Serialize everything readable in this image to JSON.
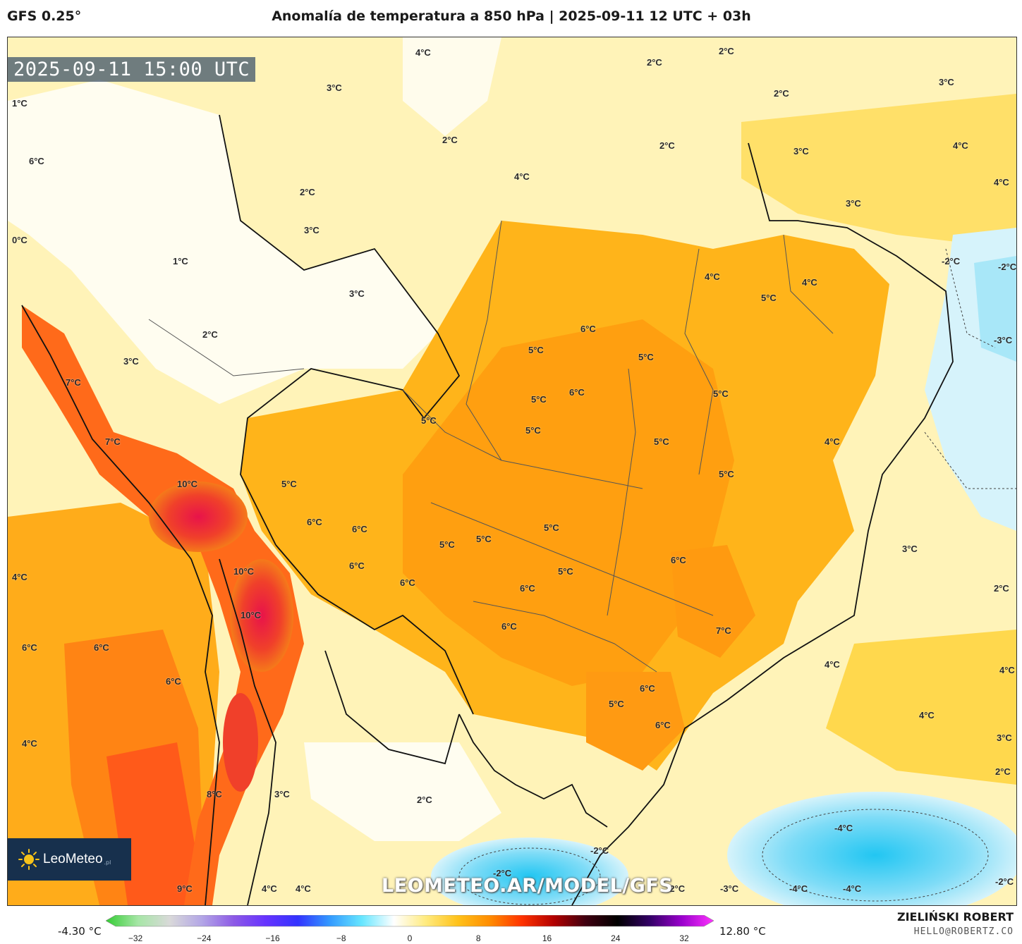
{
  "header": {
    "model": "GFS 0.25°",
    "title": "Anomalía de temperatura a 850 hPa | 2025-09-11 12 UTC + 03h"
  },
  "map": {
    "timestamp": "2025-09-11 15:00 UTC",
    "watermark": "LEOMETEO.AR/MODEL/GFS",
    "logo": {
      "brand": "LeoMeteo",
      "tld": ".pl"
    },
    "contour_labels": [
      {
        "text": "4°C"
      },
      {
        "text": "2°C"
      },
      {
        "text": "2°C"
      },
      {
        "text": "3°C"
      },
      {
        "text": "2°C"
      },
      {
        "text": "3°C"
      },
      {
        "text": "1°C"
      },
      {
        "text": "6°C"
      },
      {
        "text": "2°C"
      },
      {
        "text": "2°C"
      },
      {
        "text": "4°C"
      },
      {
        "text": "4°C"
      },
      {
        "text": "3°C"
      },
      {
        "text": "4°C"
      },
      {
        "text": "2°C"
      },
      {
        "text": "3°C"
      },
      {
        "text": "3°C"
      },
      {
        "text": "0°C"
      },
      {
        "text": "1°C"
      },
      {
        "text": "-2°C"
      },
      {
        "text": "-2°C"
      },
      {
        "text": "4°C"
      },
      {
        "text": "4°C"
      },
      {
        "text": "3°C"
      },
      {
        "text": "5°C"
      },
      {
        "text": "2°C"
      },
      {
        "text": "6°C"
      },
      {
        "text": "-3°C"
      },
      {
        "text": "3°C"
      },
      {
        "text": "5°C"
      },
      {
        "text": "5°C"
      },
      {
        "text": "7°C"
      },
      {
        "text": "5°C"
      },
      {
        "text": "6°C"
      },
      {
        "text": "5°C"
      },
      {
        "text": "5°C"
      },
      {
        "text": "5°C"
      },
      {
        "text": "4°C"
      },
      {
        "text": "7°C"
      },
      {
        "text": "5°C"
      },
      {
        "text": "5°C"
      },
      {
        "text": "10°C"
      },
      {
        "text": "6°C"
      },
      {
        "text": "6°C"
      },
      {
        "text": "5°C"
      },
      {
        "text": "5°C"
      },
      {
        "text": "5°C"
      },
      {
        "text": "5°C"
      },
      {
        "text": "3°C"
      },
      {
        "text": "6°C"
      },
      {
        "text": "4°C"
      },
      {
        "text": "10°C"
      },
      {
        "text": "6°C"
      },
      {
        "text": "6°C"
      },
      {
        "text": "5°C"
      },
      {
        "text": "2°C"
      },
      {
        "text": "6°C"
      },
      {
        "text": "10°C"
      },
      {
        "text": "6°C"
      },
      {
        "text": "7°C"
      },
      {
        "text": "6°C"
      },
      {
        "text": "6°C"
      },
      {
        "text": "6°C"
      },
      {
        "text": "4°C"
      },
      {
        "text": "4°C"
      },
      {
        "text": "5°C"
      },
      {
        "text": "6°C"
      },
      {
        "text": "4°C"
      },
      {
        "text": "6°C"
      },
      {
        "text": "4°C"
      },
      {
        "text": "3°C"
      },
      {
        "text": "2°C"
      },
      {
        "text": "8°C"
      },
      {
        "text": "3°C"
      },
      {
        "text": "2°C"
      },
      {
        "text": "-4°C"
      },
      {
        "text": "-2°C"
      },
      {
        "text": "9°C"
      },
      {
        "text": "4°C"
      },
      {
        "text": "4°C"
      },
      {
        "text": "-2°C"
      },
      {
        "text": "-2°C"
      },
      {
        "text": "-3°C"
      },
      {
        "text": "-4°C"
      },
      {
        "text": "-4°C"
      },
      {
        "text": "-2°C"
      }
    ]
  },
  "colorbar": {
    "min_label": "-4.30 °C",
    "max_label": "12.80 °C",
    "ticks": [
      "−32",
      "−24",
      "−16",
      "−8",
      "0",
      "8",
      "16",
      "24",
      "32"
    ],
    "stops": [
      "#33cc33",
      "#a6e6a6",
      "#d9d9d9",
      "#b3a6e6",
      "#8c59e6",
      "#6633ff",
      "#3333ff",
      "#3399ff",
      "#66e6ff",
      "#ffffff",
      "#ffeb80",
      "#ffc21a",
      "#ff8c00",
      "#ff3300",
      "#b30000",
      "#400010",
      "#000000",
      "#330066",
      "#9900cc",
      "#ff33ff"
    ]
  },
  "footer": {
    "author": "ZIELIŃSKI ROBERT",
    "email": "HELLO@ROBERTZ.CO"
  }
}
